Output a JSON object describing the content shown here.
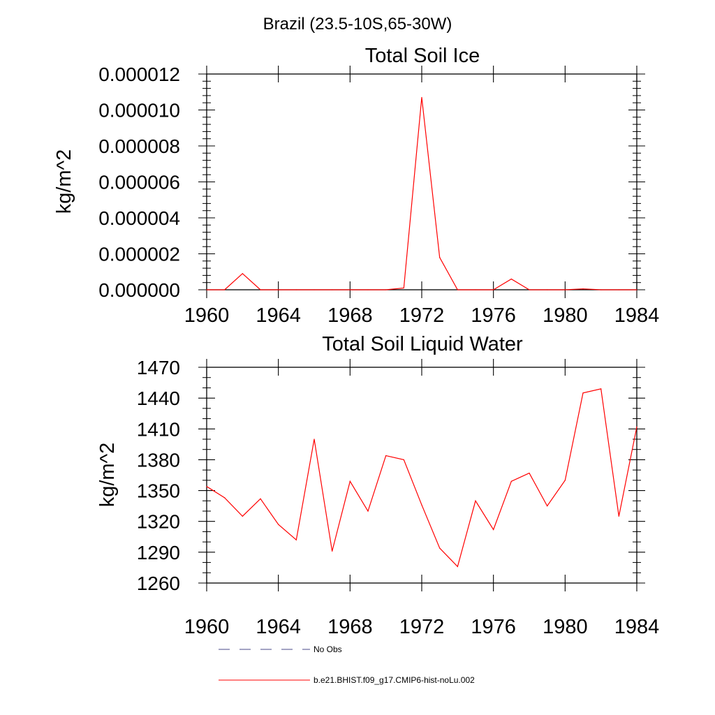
{
  "figure": {
    "region_title": "Brazil (23.5-10S,65-30W)"
  },
  "legend": {
    "entries": [
      {
        "label": "No Obs",
        "color": "#4a4a8a",
        "style": "dashed"
      },
      {
        "label": "b.e21.BHIST.f09_g17.CMIP6-hist-noLu.002",
        "color": "#ff0000",
        "style": "solid"
      }
    ]
  },
  "chart_data": [
    {
      "type": "line",
      "title": "Total Soil Ice",
      "xlabel": "",
      "ylabel": "kg/m^2",
      "xlim": [
        1960,
        1984
      ],
      "ylim": [
        0,
        1.2e-05
      ],
      "x_ticks": [
        "1960",
        "1964",
        "1968",
        "1972",
        "1976",
        "1980",
        "1984"
      ],
      "y_ticks": [
        "0.000000",
        "0.000002",
        "0.000004",
        "0.000006",
        "0.000008",
        "0.000010",
        "0.000012"
      ],
      "grid": false,
      "series": [
        {
          "name": "b.e21.BHIST.f09_g17.CMIP6-hist-noLu.002",
          "color": "#ff0000",
          "x": [
            1960,
            1961,
            1962,
            1963,
            1964,
            1965,
            1966,
            1967,
            1968,
            1969,
            1970,
            1971,
            1972,
            1973,
            1974,
            1975,
            1976,
            1977,
            1978,
            1979,
            1980,
            1981,
            1982,
            1983,
            1984
          ],
          "y": [
            0,
            0,
            9e-07,
            0,
            0,
            0,
            0,
            0,
            0,
            0,
            0,
            1e-07,
            1.07e-05,
            1.8e-06,
            0,
            0,
            0,
            6e-07,
            0,
            0,
            0,
            5e-08,
            0,
            0,
            0
          ]
        }
      ]
    },
    {
      "type": "line",
      "title": "Total Soil Liquid Water",
      "xlabel": "",
      "ylabel": "kg/m^2",
      "xlim": [
        1960,
        1984
      ],
      "ylim": [
        1260,
        1470
      ],
      "x_ticks": [
        "1960",
        "1964",
        "1968",
        "1972",
        "1976",
        "1980",
        "1984"
      ],
      "y_ticks": [
        "1260",
        "1290",
        "1320",
        "1350",
        "1380",
        "1410",
        "1440",
        "1470"
      ],
      "grid": false,
      "series": [
        {
          "name": "b.e21.BHIST.f09_g17.CMIP6-hist-noLu.002",
          "color": "#ff0000",
          "x": [
            1960,
            1961,
            1962,
            1963,
            1964,
            1965,
            1966,
            1967,
            1968,
            1969,
            1970,
            1971,
            1972,
            1973,
            1974,
            1975,
            1976,
            1977,
            1978,
            1979,
            1980,
            1981,
            1982,
            1983,
            1984
          ],
          "y": [
            1354,
            1343,
            1325,
            1342,
            1317,
            1302,
            1400,
            1291,
            1359,
            1330,
            1384,
            1380,
            1336,
            1294,
            1276,
            1340,
            1312,
            1359,
            1367,
            1335,
            1360,
            1445,
            1449,
            1325,
            1412
          ]
        }
      ]
    }
  ]
}
